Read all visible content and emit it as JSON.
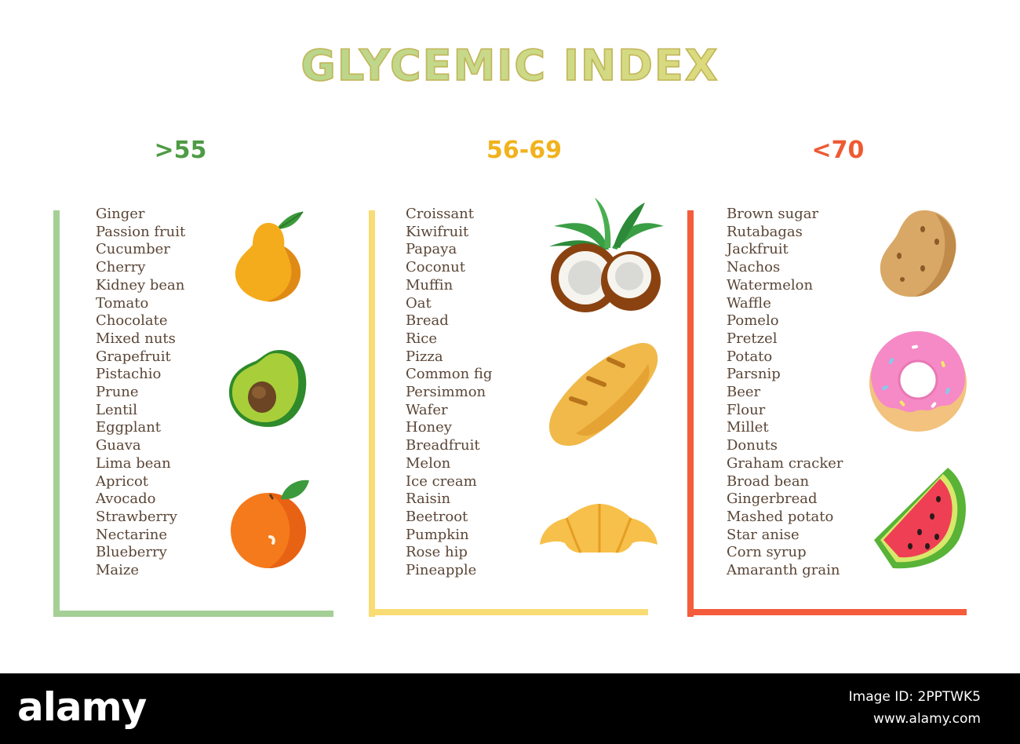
{
  "title": "GLYCEMIC INDEX",
  "colors": {
    "low": "#a4cf95",
    "medium": "#f9dc73",
    "high": "#f45c3b",
    "text": "#5a4536"
  },
  "columns": [
    {
      "range": "&gt;55",
      "range_text": ">55",
      "color": "#4e9b45",
      "items": [
        "Ginger",
        "Passion fruit",
        "Cucumber",
        "Cherry",
        "Kidney bean",
        "Tomato",
        "Chocolate",
        "Mixed nuts",
        "Grapefruit",
        "Pistachio",
        "Prune",
        "Lentil",
        "Eggplant",
        "Guava",
        "Lima bean",
        "Apricot",
        "Avocado",
        "Strawberry",
        "Nectarine",
        "Blueberry",
        "Maize"
      ],
      "icons": [
        "pear-icon",
        "avocado-icon",
        "orange-icon"
      ]
    },
    {
      "range_text": "56-69",
      "color": "#f1b21c",
      "items": [
        "Croissant",
        "Kiwifruit",
        "Papaya",
        "Coconut",
        "Muffin",
        "Oat",
        "Bread",
        "Rice",
        "Pizza",
        "Common fig",
        "Persimmon",
        "Wafer",
        "Honey",
        "Breadfruit",
        "Melon",
        "Ice cream",
        "Raisin",
        "Beetroot",
        "Pumpkin",
        "Rose hip",
        "Pineapple"
      ],
      "icons": [
        "coconut-icon",
        "bread-icon",
        "croissant-icon"
      ]
    },
    {
      "range_text": "<70",
      "color": "#ee5a33",
      "items": [
        "Brown sugar",
        "Rutabagas",
        "Jackfruit",
        "Nachos",
        "Watermelon",
        "Waffle",
        "Pomelo",
        "Pretzel",
        "Potato",
        "Parsnip",
        "Beer",
        "Flour",
        "Millet",
        "Donuts",
        "Graham cracker",
        "Broad bean",
        "Gingerbread",
        "Mashed potato",
        "Star anise",
        "Corn syrup",
        "Amaranth grain"
      ],
      "icons": [
        "potato-icon",
        "donut-icon",
        "watermelon-icon"
      ]
    }
  ],
  "footer": {
    "brand": "alamy",
    "image_id": "Image ID: 2PPTWK5",
    "site": "www.alamy.com"
  }
}
